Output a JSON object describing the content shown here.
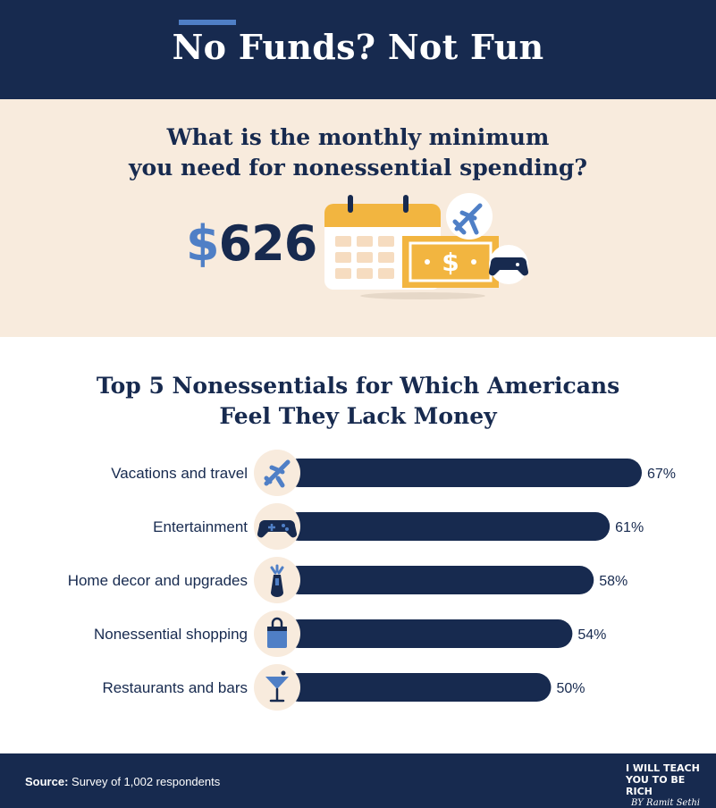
{
  "header": {
    "title": "No Funds? Not Fun"
  },
  "hero": {
    "question_line1": "What is the monthly minimum",
    "question_line2": "you need for nonessential spending?",
    "amount_symbol": "$",
    "amount_value": "626",
    "banknote_symbol": "$",
    "icons": [
      "calendar-icon",
      "money-bill-icon",
      "airplane-icon",
      "game-controller-icon"
    ]
  },
  "chart_title": {
    "line1": "Top 5 Nonessentials for Which Americans",
    "line2": "Feel They Lack Money"
  },
  "chart_data": {
    "type": "bar",
    "orientation": "horizontal",
    "title": "Top 5 Nonessentials for Which Americans Feel They Lack Money",
    "categories": [
      "Vacations and travel",
      "Entertainment",
      "Home decor and upgrades",
      "Nonessential shopping",
      "Restaurants and bars"
    ],
    "values": [
      67,
      61,
      58,
      54,
      50
    ],
    "value_labels": [
      "67%",
      "61%",
      "58%",
      "54%",
      "50%"
    ],
    "icons": [
      "airplane-icon",
      "game-controller-icon",
      "lamp-icon",
      "shopping-bag-icon",
      "cocktail-icon"
    ],
    "xlim": [
      0,
      100
    ],
    "grid": false,
    "legend": "none"
  },
  "colors": {
    "navy": "#172a4f",
    "accent_blue": "#4f7fc6",
    "cream": "#f8ebdd",
    "gold": "#f2b540"
  },
  "footer": {
    "source_label": "Source:",
    "source_text": " Survey of 1,002 respondents",
    "logo_line1": "I WILL TEACH",
    "logo_line2": "YOU TO BE RICH",
    "logo_by": "BY",
    "logo_signature": "Ramit Sethi"
  }
}
